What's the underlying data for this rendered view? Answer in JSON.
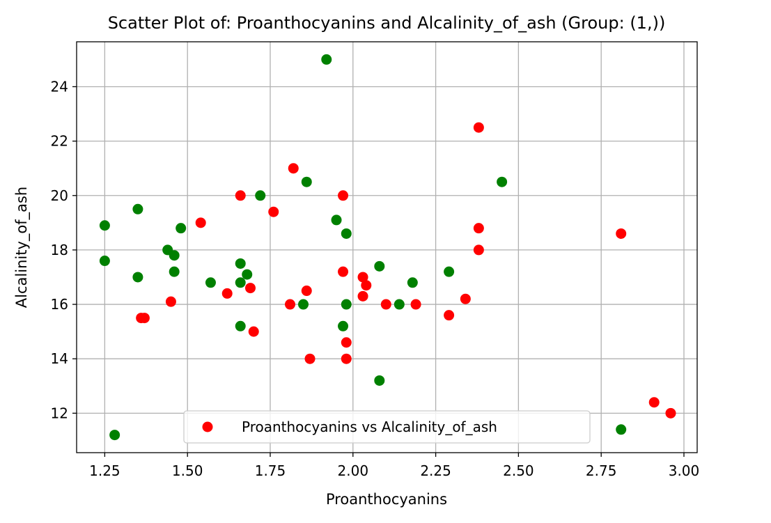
{
  "chart_data": {
    "type": "scatter",
    "title": "Scatter Plot of: Proanthocyanins and Alcalinity_of_ash (Group: (1,))",
    "xlabel": "Proanthocyanins",
    "ylabel": "Alcalinity_of_ash",
    "xlim": [
      1.165,
      3.04
    ],
    "ylim": [
      10.55,
      25.65
    ],
    "x_ticks": [
      1.25,
      1.5,
      1.75,
      2.0,
      2.25,
      2.5,
      2.75,
      3.0
    ],
    "x_tick_labels": [
      "1.25",
      "1.50",
      "1.75",
      "2.00",
      "2.25",
      "2.50",
      "2.75",
      "3.00"
    ],
    "y_ticks": [
      12,
      14,
      16,
      18,
      20,
      22,
      24
    ],
    "y_tick_labels": [
      "12",
      "14",
      "16",
      "18",
      "20",
      "22",
      "24"
    ],
    "grid": true,
    "legend": {
      "position": "lower center",
      "entries": [
        "Proanthocyanins vs Alcalinity_of_ash"
      ]
    },
    "series": [
      {
        "name": "Proanthocyanins vs Alcalinity_of_ash",
        "color": "#ff0000",
        "points": [
          [
            1.66,
            20.0
          ],
          [
            1.82,
            21.0
          ],
          [
            1.97,
            20.0
          ],
          [
            2.38,
            22.5
          ],
          [
            1.76,
            19.4
          ],
          [
            1.54,
            19.0
          ],
          [
            2.38,
            18.8
          ],
          [
            2.81,
            18.6
          ],
          [
            2.38,
            18.0
          ],
          [
            1.97,
            17.2
          ],
          [
            2.03,
            17.0
          ],
          [
            2.04,
            16.7
          ],
          [
            1.69,
            16.6
          ],
          [
            1.86,
            16.5
          ],
          [
            1.62,
            16.4
          ],
          [
            2.03,
            16.3
          ],
          [
            2.34,
            16.2
          ],
          [
            1.45,
            16.1
          ],
          [
            1.81,
            16.0
          ],
          [
            2.1,
            16.0
          ],
          [
            2.19,
            16.0
          ],
          [
            2.29,
            15.6
          ],
          [
            1.36,
            15.5
          ],
          [
            1.37,
            15.5
          ],
          [
            1.7,
            15.0
          ],
          [
            1.98,
            14.6
          ],
          [
            1.87,
            14.0
          ],
          [
            1.98,
            14.0
          ],
          [
            2.91,
            12.4
          ],
          [
            2.96,
            12.0
          ]
        ]
      },
      {
        "color": "#008000",
        "points": [
          [
            1.92,
            25.0
          ],
          [
            1.86,
            20.5
          ],
          [
            2.45,
            20.5
          ],
          [
            1.72,
            20.0
          ],
          [
            1.35,
            19.5
          ],
          [
            1.95,
            19.1
          ],
          [
            1.25,
            18.9
          ],
          [
            1.48,
            18.8
          ],
          [
            1.98,
            18.6
          ],
          [
            1.44,
            18.0
          ],
          [
            1.46,
            17.8
          ],
          [
            1.25,
            17.6
          ],
          [
            1.66,
            17.5
          ],
          [
            2.08,
            17.4
          ],
          [
            1.46,
            17.2
          ],
          [
            2.29,
            17.2
          ],
          [
            1.68,
            17.1
          ],
          [
            1.35,
            17.0
          ],
          [
            1.57,
            16.8
          ],
          [
            1.66,
            16.8
          ],
          [
            2.18,
            16.8
          ],
          [
            1.85,
            16.0
          ],
          [
            1.98,
            16.0
          ],
          [
            2.14,
            16.0
          ],
          [
            1.66,
            15.2
          ],
          [
            1.97,
            15.2
          ],
          [
            2.08,
            13.2
          ],
          [
            1.28,
            11.2
          ],
          [
            2.81,
            11.4
          ]
        ]
      }
    ]
  }
}
